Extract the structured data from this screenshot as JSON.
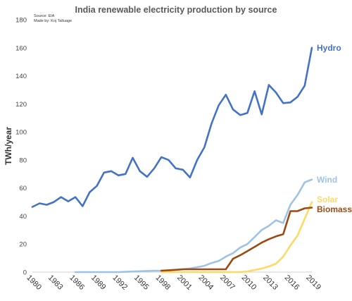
{
  "chart_data": {
    "type": "line",
    "title": "India renewable electricity production by source",
    "source": "Source: EIA",
    "credit": "Made by: Koj Talluage",
    "ylabel": "TWh/year",
    "xlabel": "",
    "ylim": [
      0,
      180
    ],
    "xlim": [
      1980,
      2019
    ],
    "yticks": [
      0,
      20,
      40,
      60,
      80,
      100,
      120,
      140,
      160,
      180
    ],
    "xticks": [
      "1980",
      "1983",
      "1986",
      "1989",
      "1992",
      "1995",
      "1998",
      "2001",
      "2004",
      "2007",
      "2010",
      "2013",
      "2016",
      "2019"
    ],
    "grid": false,
    "legend": "inline labels at line ends",
    "series": [
      {
        "name": "Hydro",
        "color": "#4472C4",
        "x": [
          1980,
          1981,
          1982,
          1983,
          1984,
          1985,
          1986,
          1987,
          1988,
          1989,
          1990,
          1991,
          1992,
          1993,
          1994,
          1995,
          1996,
          1997,
          1998,
          1999,
          2000,
          2001,
          2002,
          2003,
          2004,
          2005,
          2006,
          2007,
          2008,
          2009,
          2010,
          2011,
          2012,
          2013,
          2014,
          2015,
          2016,
          2017,
          2018,
          2019
        ],
        "values": [
          46.5,
          49,
          48,
          50,
          53.5,
          50.5,
          53.5,
          47,
          57,
          61.5,
          71,
          72,
          69,
          70,
          81.5,
          72,
          68,
          74,
          82,
          80,
          74,
          73,
          67.5,
          80,
          89,
          106,
          119,
          126.5,
          116,
          112,
          113.5,
          129,
          112.5,
          133.5,
          128,
          120.5,
          121,
          125,
          133,
          160
        ]
      },
      {
        "name": "Wind",
        "color": "#9DC3E6",
        "x": [
          1986,
          1988,
          1990,
          1992,
          1993,
          1994,
          1995,
          1996,
          1997,
          1998,
          1999,
          2000,
          2001,
          2002,
          2003,
          2004,
          2005,
          2006,
          2007,
          2008,
          2009,
          2010,
          2011,
          2012,
          2013,
          2014,
          2015,
          2016,
          2017,
          2018,
          2019
        ],
        "values": [
          0,
          0,
          0,
          0,
          0.2,
          0.4,
          0.6,
          0.8,
          1,
          1,
          1.2,
          1.6,
          2,
          2.6,
          3.5,
          4.5,
          6.5,
          8,
          11,
          13.5,
          17.5,
          20,
          25,
          30,
          33,
          37,
          35,
          48,
          55,
          64,
          66
        ]
      },
      {
        "name": "Solar",
        "color": "#FFD966",
        "x": [
          1998,
          2000,
          2002,
          2004,
          2006,
          2008,
          2009,
          2010,
          2011,
          2012,
          2013,
          2014,
          2015,
          2016,
          2017,
          2018,
          2019
        ],
        "values": [
          0,
          0,
          0,
          0,
          0,
          0,
          0,
          0.5,
          1.5,
          2.5,
          4,
          6,
          11,
          19,
          26,
          38,
          50
        ]
      },
      {
        "name": "Biomass",
        "color": "#9C4A11",
        "x": [
          1998,
          1999,
          2000,
          2001,
          2002,
          2003,
          2004,
          2005,
          2006,
          2007,
          2008,
          2009,
          2010,
          2011,
          2012,
          2013,
          2014,
          2015,
          2016,
          2017,
          2018,
          2019
        ],
        "values": [
          1,
          1.3,
          1.6,
          2,
          2,
          2,
          2,
          2,
          2,
          2,
          9.5,
          12,
          15,
          18,
          21,
          23.5,
          25.5,
          27,
          43.5,
          43.5,
          45.5,
          46
        ]
      }
    ]
  }
}
